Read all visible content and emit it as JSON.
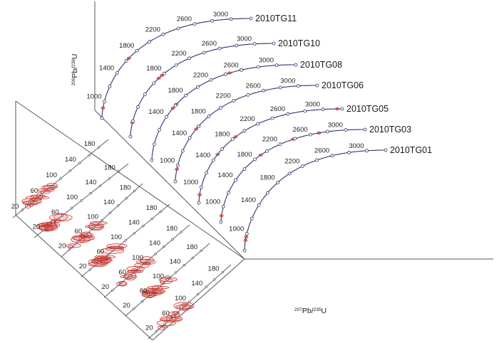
{
  "chart_data": {
    "type": "scatter",
    "subtype": "wetherill-concordia-stacked-pseudo-3d",
    "axes": {
      "y_title_parts": [
        "206",
        "Pb/",
        "238",
        "U"
      ],
      "x_title_parts": [
        "207",
        "Pb/",
        "235",
        "U"
      ]
    },
    "colors": {
      "curve": "#2e3470",
      "marker_fill": "#ffffff",
      "marker_stroke": "#2e3470",
      "ellipse": "#c8312b",
      "axis": "#555555"
    },
    "upper_panel": {
      "description": "Concordia curves, age ticks in Ma",
      "samples": [
        {
          "name": "2010TG11",
          "labels": [
            {
              "age": 1000,
              "text": "1000"
            },
            {
              "age": 1400,
              "text": "1400"
            },
            {
              "age": 1800,
              "text": "1800"
            },
            {
              "age": 2200,
              "text": "2200"
            },
            {
              "age": 2600,
              "text": "2600"
            },
            {
              "age": 3000,
              "text": "3000"
            }
          ],
          "ellipses": [
            {
              "age": 920
            },
            {
              "age": 1650
            }
          ]
        },
        {
          "name": "2010TG10",
          "labels": [
            {
              "age": 1800,
              "text": "1800"
            },
            {
              "age": 2200,
              "text": "2200"
            },
            {
              "age": 2600,
              "text": "2600"
            },
            {
              "age": 3000,
              "text": "3000"
            }
          ],
          "ellipses": [
            {
              "age": 980
            },
            {
              "age": 1700
            },
            {
              "age": 1760
            }
          ]
        },
        {
          "name": "2010TG08",
          "labels": [
            {
              "age": 1400,
              "text": "1400"
            },
            {
              "age": 1800,
              "text": "1800"
            },
            {
              "age": 2200,
              "text": "2200"
            },
            {
              "age": 2600,
              "text": "2600"
            },
            {
              "age": 3000,
              "text": "3000"
            }
          ],
          "ellipses": [
            {
              "age": 1550
            },
            {
              "age": 1620
            },
            {
              "age": 2450
            },
            {
              "age": 2600
            }
          ]
        },
        {
          "name": "2010TG06",
          "labels": [
            {
              "age": 1000,
              "text": "1000"
            },
            {
              "age": 1400,
              "text": "1400"
            },
            {
              "age": 1800,
              "text": "1800"
            },
            {
              "age": 2200,
              "text": "2200"
            },
            {
              "age": 2600,
              "text": "2600"
            },
            {
              "age": 3000,
              "text": "3000"
            }
          ],
          "ellipses": [
            {
              "age": 950
            },
            {
              "age": 1550
            },
            {
              "age": 1600
            }
          ]
        },
        {
          "name": "2010TG05",
          "labels": [
            {
              "age": 1000,
              "text": "1000"
            },
            {
              "age": 1400,
              "text": "1400"
            },
            {
              "age": 1800,
              "text": "1800"
            },
            {
              "age": 2200,
              "text": "2200"
            },
            {
              "age": 2600,
              "text": "2600"
            },
            {
              "age": 3000,
              "text": "3000"
            }
          ],
          "ellipses": [
            {
              "age": 900
            },
            {
              "age": 1500
            },
            {
              "age": 1850
            },
            {
              "age": 3150
            }
          ]
        },
        {
          "name": "2010TG03",
          "labels": [
            {
              "age": 1000,
              "text": "1000"
            },
            {
              "age": 1400,
              "text": "1400"
            },
            {
              "age": 1800,
              "text": "1800"
            },
            {
              "age": 2200,
              "text": "2200"
            },
            {
              "age": 2600,
              "text": "2600"
            },
            {
              "age": 3000,
              "text": "3000"
            }
          ],
          "ellipses": [
            {
              "age": 880
            },
            {
              "age": 1900
            },
            {
              "age": 2380
            },
            {
              "age": 2700
            }
          ]
        },
        {
          "name": "2010TG01",
          "labels": [
            {
              "age": 1000,
              "text": "1000"
            },
            {
              "age": 1400,
              "text": "1400"
            },
            {
              "age": 1800,
              "text": "1800"
            },
            {
              "age": 2200,
              "text": "2200"
            },
            {
              "age": 2600,
              "text": "2600"
            },
            {
              "age": 3000,
              "text": "3000"
            }
          ],
          "ellipses": [
            {
              "age": 920
            },
            {
              "age": 960
            }
          ]
        }
      ]
    },
    "lower_panel": {
      "description": "Young-age concordia lines (Ma) with clustered error ellipses",
      "lines": [
        {
          "labels": [
            {
              "age": 20,
              "text": "20"
            },
            {
              "age": 60,
              "text": "60"
            },
            {
              "age": 100,
              "text": "100"
            },
            {
              "age": 140,
              "text": "140"
            },
            {
              "age": 180,
              "text": "180"
            }
          ],
          "cluster_age": 55,
          "spread": 30
        },
        {
          "labels": [
            {
              "age": 20,
              "text": "20"
            },
            {
              "age": 60,
              "text": "60"
            },
            {
              "age": 100,
              "text": "100"
            },
            {
              "age": 140,
              "text": "140"
            },
            {
              "age": 180,
              "text": "180"
            }
          ],
          "cluster_age": 40,
          "spread": 16
        },
        {
          "labels": [
            {
              "age": 20,
              "text": "20"
            },
            {
              "age": 60,
              "text": "60"
            },
            {
              "age": 100,
              "text": "100"
            },
            {
              "age": 140,
              "text": "140"
            },
            {
              "age": 180,
              "text": "180"
            }
          ],
          "cluster_age": 55,
          "spread": 36
        },
        {
          "labels": [
            {
              "age": 20,
              "text": "20"
            },
            {
              "age": 60,
              "text": "60"
            },
            {
              "age": 100,
              "text": "100"
            },
            {
              "age": 140,
              "text": "140"
            },
            {
              "age": 180,
              "text": "180"
            }
          ],
          "cluster_age": 60,
          "spread": 26
        },
        {
          "labels": [
            {
              "age": 20,
              "text": "20"
            },
            {
              "age": 60,
              "text": "60"
            },
            {
              "age": 100,
              "text": "100"
            },
            {
              "age": 140,
              "text": "140"
            },
            {
              "age": 180,
              "text": "180"
            }
          ],
          "cluster_age": 70,
          "spread": 36
        },
        {
          "labels": [
            {
              "age": 20,
              "text": "20"
            },
            {
              "age": 60,
              "text": "60"
            },
            {
              "age": 100,
              "text": "100"
            },
            {
              "age": 140,
              "text": "140"
            },
            {
              "age": 180,
              "text": "180"
            }
          ],
          "cluster_age": 80,
          "spread": 26
        },
        {
          "labels": [
            {
              "age": 20,
              "text": "20"
            },
            {
              "age": 60,
              "text": "60"
            },
            {
              "age": 100,
              "text": "100"
            },
            {
              "age": 140,
              "text": "140"
            },
            {
              "age": 180,
              "text": "180"
            }
          ],
          "cluster_age": 60,
          "spread": 30
        }
      ]
    }
  }
}
